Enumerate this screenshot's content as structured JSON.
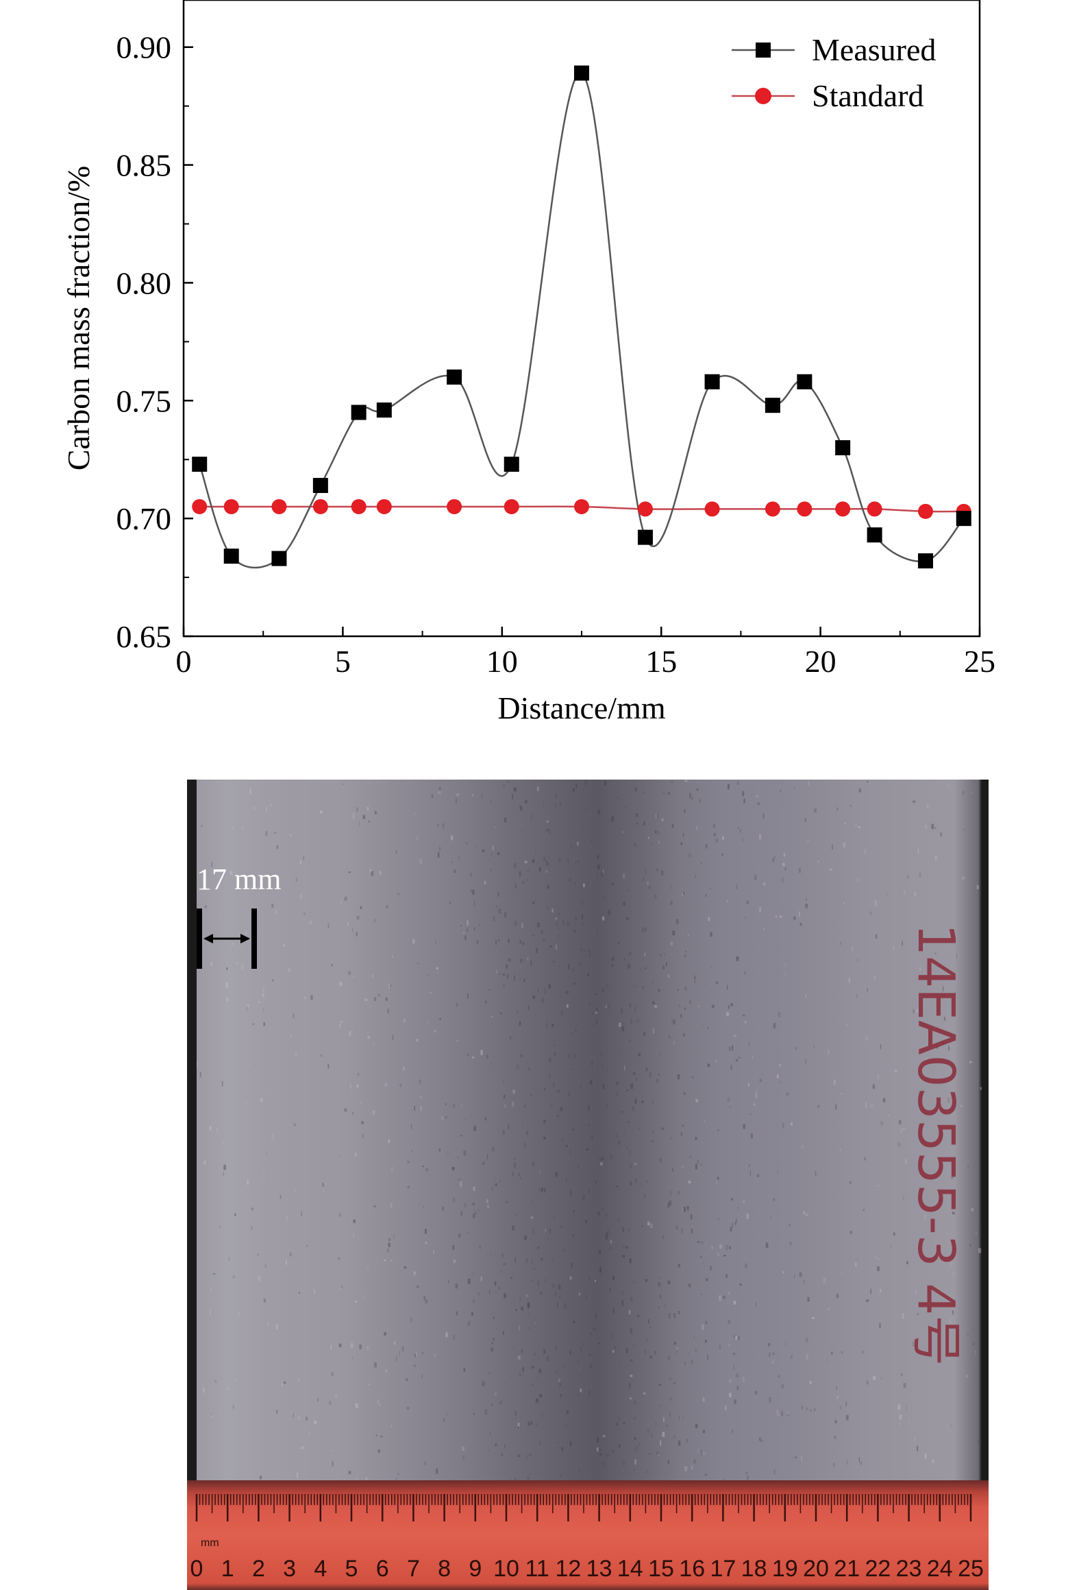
{
  "chart_data": {
    "type": "line",
    "xlabel": "Distance/mm",
    "ylabel": "Carbon mass fraction/%",
    "xlim": [
      0,
      25
    ],
    "ylim": [
      0.65,
      0.92
    ],
    "x_ticks": [
      "0",
      "5",
      "10",
      "15",
      "20",
      "25"
    ],
    "y_ticks": [
      "0.65",
      "0.70",
      "0.75",
      "0.80",
      "0.85",
      "0.90"
    ],
    "grid": false,
    "legend_position": "top-right",
    "series": [
      {
        "name": "Measured",
        "color": "#000000",
        "line_color": "#555555",
        "marker": "square",
        "x": [
          0.5,
          1.5,
          3.0,
          4.3,
          5.5,
          6.3,
          8.5,
          10.3,
          12.5,
          14.5,
          16.6,
          18.5,
          19.5,
          20.7,
          21.7,
          23.3,
          24.5
        ],
        "y": [
          0.723,
          0.684,
          0.683,
          0.714,
          0.745,
          0.746,
          0.76,
          0.723,
          0.889,
          0.692,
          0.758,
          0.748,
          0.758,
          0.73,
          0.693,
          0.682,
          0.7
        ]
      },
      {
        "name": "Standard",
        "color": "#e31e24",
        "line_color": "#c5464e",
        "marker": "circle",
        "x": [
          0.5,
          1.5,
          3.0,
          4.3,
          5.5,
          6.3,
          8.5,
          10.3,
          12.5,
          14.5,
          16.6,
          18.5,
          19.5,
          20.7,
          21.7,
          23.3,
          24.5
        ],
        "y": [
          0.705,
          0.705,
          0.705,
          0.705,
          0.705,
          0.705,
          0.705,
          0.705,
          0.705,
          0.704,
          0.704,
          0.704,
          0.704,
          0.704,
          0.704,
          0.703,
          0.703
        ]
      }
    ]
  },
  "photo": {
    "scale_label": "17 mm",
    "specimen_marking": "14EA03555-3 4号",
    "ruler_unit": "mm",
    "ruler_numbers": [
      "0",
      "1",
      "2",
      "3",
      "4",
      "5",
      "6",
      "7",
      "8",
      "9",
      "10",
      "11",
      "12",
      "13",
      "14",
      "15",
      "16",
      "17",
      "18",
      "19",
      "20",
      "21",
      "22",
      "23",
      "24",
      "25"
    ]
  }
}
